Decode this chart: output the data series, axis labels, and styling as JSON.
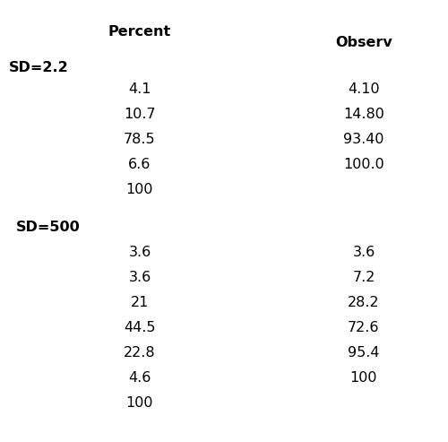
{
  "col1_header": "Percent",
  "col2_header": "Observ",
  "group1_label": "SD=2.2",
  "group1_percent": [
    "4.1",
    "10.7",
    "78.5",
    "6.6",
    "100"
  ],
  "group1_observ": [
    "4.10",
    "14.80",
    "93.40",
    "100.0",
    ""
  ],
  "group2_label": "SD=500",
  "group2_percent": [
    "3.6",
    "3.6",
    "21",
    "44.5",
    "22.8",
    "4.6",
    "100"
  ],
  "group2_observ": [
    "3.6",
    "7.2",
    "28.2",
    "72.6",
    "95.4",
    "100",
    ""
  ],
  "bg_color": "#ffffff",
  "text_color": "#000000",
  "header_fontsize": 11.5,
  "group_fontsize": 11.5,
  "data_fontsize": 11.5
}
